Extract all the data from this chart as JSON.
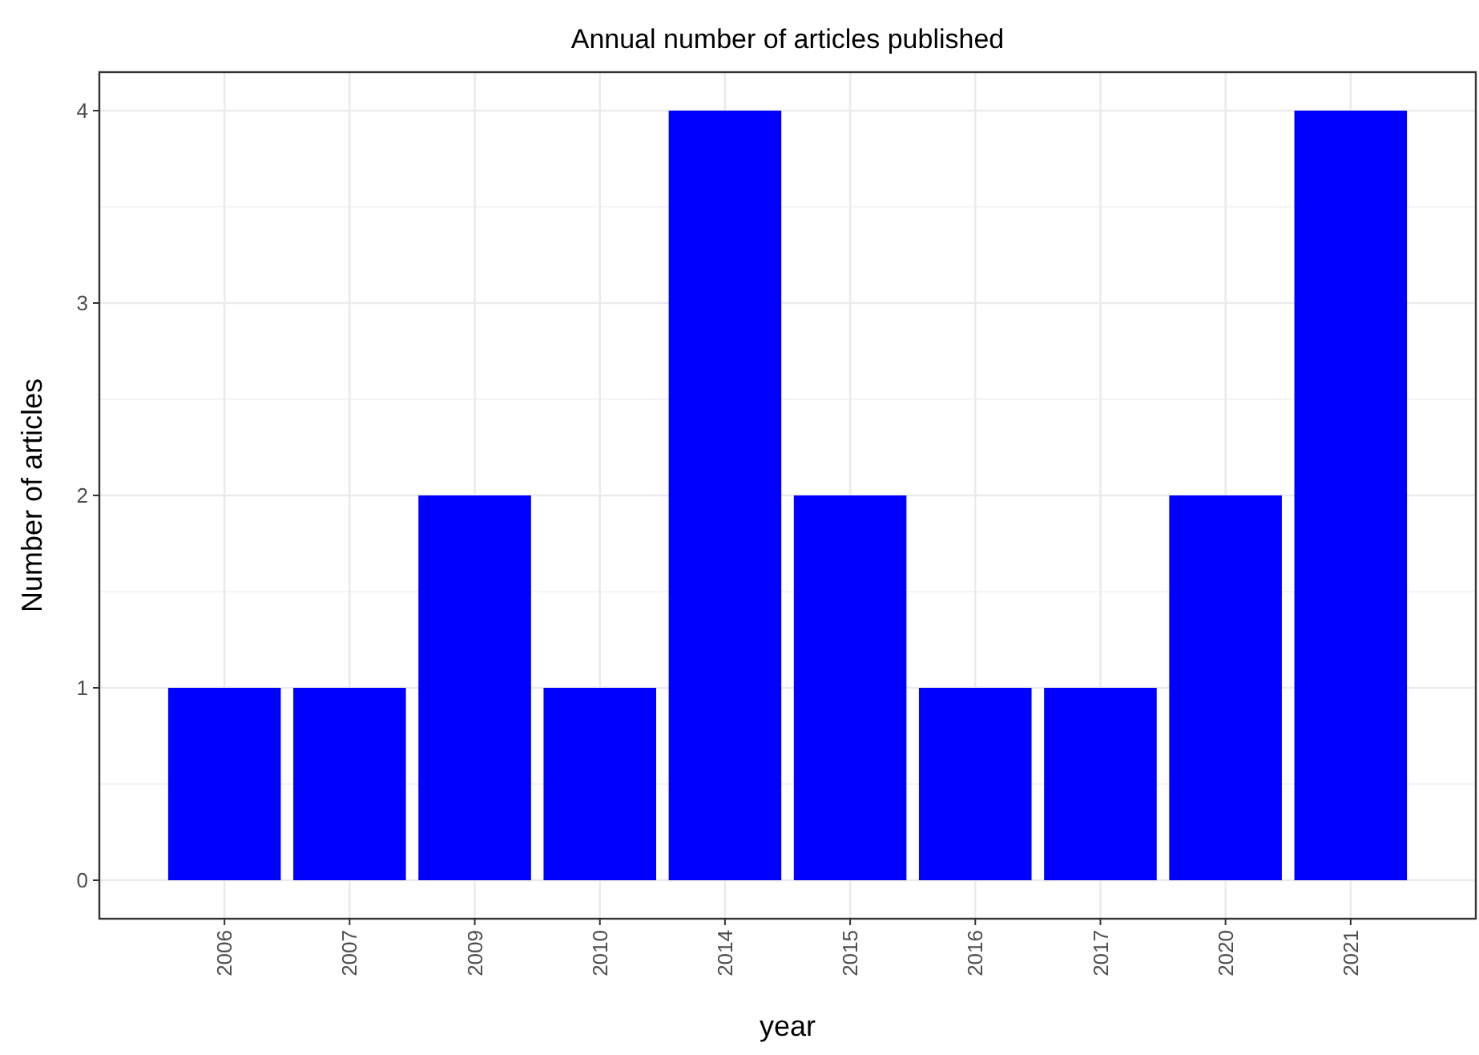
{
  "chart_data": {
    "type": "bar",
    "title": "Annual number of articles published",
    "xlabel": "year",
    "ylabel": "Number of articles",
    "categories": [
      "2006",
      "2007",
      "2009",
      "2010",
      "2014",
      "2015",
      "2016",
      "2017",
      "2020",
      "2021"
    ],
    "values": [
      1,
      1,
      2,
      1,
      4,
      2,
      1,
      1,
      2,
      4
    ],
    "color": "#0000ff",
    "ylim": [
      -0.2,
      4.2
    ],
    "yticks": [
      0,
      1,
      2,
      3,
      4
    ],
    "grid": true
  }
}
